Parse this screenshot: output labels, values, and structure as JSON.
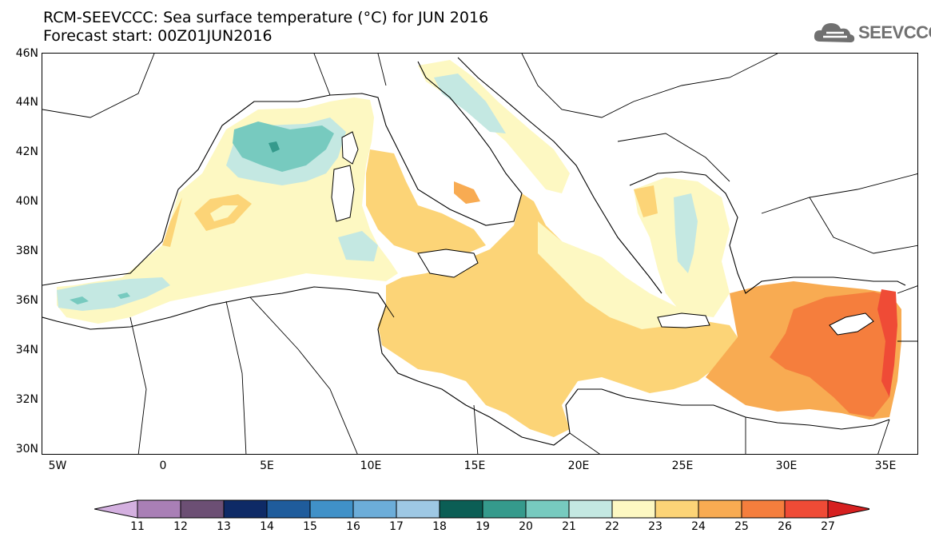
{
  "title_line1": "RCM-SEEVCCC: Sea surface temperature (°C) for JUN 2016",
  "title_line2": "Forecast start: 00Z01JUN2016",
  "logo": {
    "text": "SEEVCCC",
    "icon": "cloud-icon",
    "color": "#707070"
  },
  "map": {
    "lon_range": [
      -5.5,
      36.5
    ],
    "lat_range": [
      29.8,
      46.0
    ],
    "lat_ticks": [
      "46N",
      "44N",
      "42N",
      "40N",
      "38N",
      "36N",
      "34N",
      "32N",
      "30N"
    ],
    "lon_ticks": [
      "5W",
      "0",
      "5E",
      "10E",
      "15E",
      "20E",
      "25E",
      "30E",
      "35E"
    ],
    "land_color": "#ffffff",
    "border_color": "#000000"
  },
  "colorbar": {
    "labels": [
      "11",
      "12",
      "13",
      "14",
      "15",
      "16",
      "17",
      "18",
      "19",
      "20",
      "21",
      "22",
      "23",
      "24",
      "25",
      "26",
      "27"
    ],
    "colors": [
      "#d4b0e0",
      "#a97fb6",
      "#6c4f74",
      "#0e2a66",
      "#1f5c9c",
      "#4091c8",
      "#6cadd9",
      "#9ec8e4",
      "#0b5e55",
      "#359a8c",
      "#77cabf",
      "#c4e8e2",
      "#fdf8c2",
      "#fcd477",
      "#f8ab52",
      "#f57e3d",
      "#ef4b36",
      "#d62020"
    ]
  }
}
